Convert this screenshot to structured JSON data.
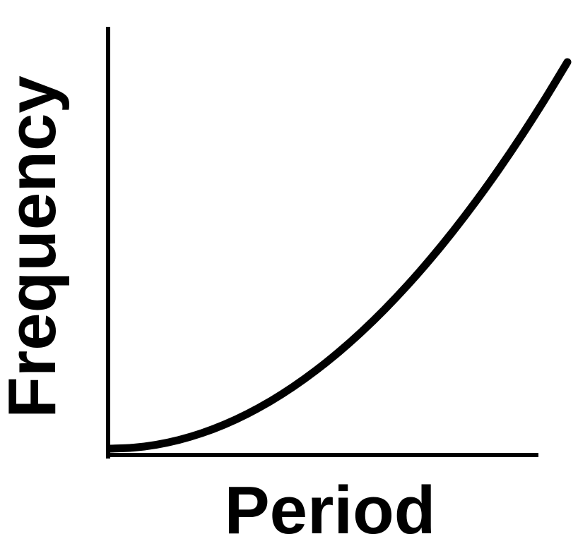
{
  "chart_data": {
    "type": "line",
    "title": "",
    "xlabel": "Period",
    "ylabel": "Frequency",
    "grid": false,
    "legend": "none",
    "x": [
      0,
      0.05,
      0.1,
      0.15,
      0.2,
      0.25,
      0.3,
      0.35,
      0.4,
      0.45,
      0.5,
      0.55,
      0.6,
      0.65,
      0.7,
      0.75,
      0.8,
      0.85,
      0.9,
      0.95,
      1.0
    ],
    "series": [
      {
        "values": [
          0,
          0.0025,
          0.01,
          0.0225,
          0.04,
          0.0625,
          0.09,
          0.1225,
          0.16,
          0.2025,
          0.25,
          0.3025,
          0.36,
          0.4225,
          0.49,
          0.5625,
          0.64,
          0.7225,
          0.81,
          0.9025,
          1.0
        ],
        "color": "#000000"
      }
    ],
    "xlim": [
      0,
      1
    ],
    "ylim": [
      0,
      1
    ],
    "axis_color": "#000000"
  }
}
